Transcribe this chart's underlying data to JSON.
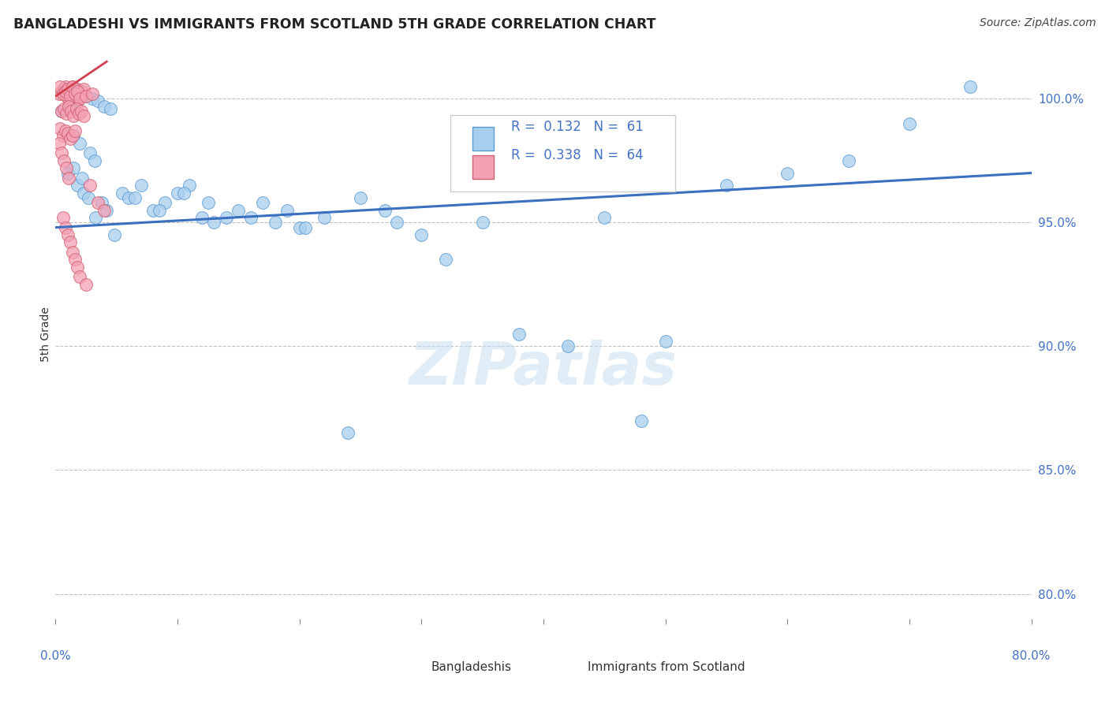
{
  "title": "BANGLADESHI VS IMMIGRANTS FROM SCOTLAND 5TH GRADE CORRELATION CHART",
  "source": "Source: ZipAtlas.com",
  "ylabel": "5th Grade",
  "ylabel_right_ticks": [
    80.0,
    85.0,
    90.0,
    95.0,
    100.0
  ],
  "xmin": 0.0,
  "xmax": 80.0,
  "ymin": 79.0,
  "ymax": 102.0,
  "legend_blue_r": "R =  0.132",
  "legend_blue_n": "N =  61",
  "legend_pink_r": "R =  0.338",
  "legend_pink_n": "N =  64",
  "blue_color": "#A8CEED",
  "blue_edge_color": "#5B9BD5",
  "pink_color": "#F4A0B5",
  "pink_edge_color": "#D06070",
  "trend_blue_color": "#3B6FBF",
  "trend_pink_color": "#D04050",
  "watermark": "ZIPatlas",
  "blue_scatter_x": [
    0.5,
    1.2,
    1.8,
    2.5,
    3.0,
    3.5,
    4.0,
    4.5,
    1.5,
    2.0,
    2.8,
    3.2,
    1.0,
    1.8,
    2.3,
    2.7,
    3.8,
    4.2,
    5.5,
    6.0,
    7.0,
    8.0,
    9.0,
    10.0,
    11.0,
    12.0,
    13.0,
    14.0,
    15.0,
    17.0,
    18.0,
    19.0,
    20.0,
    22.0,
    25.0,
    27.0,
    28.0,
    30.0,
    35.0,
    38.0,
    42.0,
    45.0,
    50.0,
    55.0,
    60.0,
    65.0,
    70.0,
    75.0,
    1.5,
    2.2,
    3.3,
    4.8,
    6.5,
    8.5,
    10.5,
    12.5,
    16.0,
    20.5,
    24.0,
    32.0,
    48.0
  ],
  "blue_scatter_y": [
    99.5,
    99.8,
    100.0,
    100.1,
    100.0,
    99.9,
    99.7,
    99.6,
    98.5,
    98.2,
    97.8,
    97.5,
    97.0,
    96.5,
    96.2,
    96.0,
    95.8,
    95.5,
    96.2,
    96.0,
    96.5,
    95.5,
    95.8,
    96.2,
    96.5,
    95.2,
    95.0,
    95.2,
    95.5,
    95.8,
    95.0,
    95.5,
    94.8,
    95.2,
    96.0,
    95.5,
    95.0,
    94.5,
    95.0,
    90.5,
    90.0,
    95.2,
    90.2,
    96.5,
    97.0,
    97.5,
    99.0,
    100.5,
    97.2,
    96.8,
    95.2,
    94.5,
    96.0,
    95.5,
    96.2,
    95.8,
    95.2,
    94.8,
    86.5,
    93.5,
    87.0
  ],
  "pink_scatter_x": [
    0.3,
    0.5,
    0.7,
    0.8,
    0.9,
    1.0,
    1.1,
    1.2,
    1.3,
    1.4,
    1.5,
    1.6,
    1.7,
    1.8,
    1.9,
    2.0,
    2.1,
    2.2,
    2.3,
    0.4,
    0.6,
    0.8,
    1.0,
    1.2,
    1.4,
    1.6,
    1.8,
    2.0,
    2.5,
    3.0,
    0.5,
    0.7,
    0.9,
    1.1,
    1.3,
    1.5,
    1.7,
    1.9,
    2.1,
    2.3,
    0.4,
    0.6,
    0.8,
    1.0,
    1.2,
    1.4,
    1.6,
    0.3,
    0.5,
    0.7,
    0.9,
    1.1,
    2.8,
    3.5,
    4.0,
    0.6,
    0.8,
    1.0,
    1.2,
    1.4,
    1.6,
    1.8,
    2.0,
    2.5
  ],
  "pink_scatter_y": [
    100.2,
    100.3,
    100.4,
    100.5,
    100.1,
    100.2,
    100.0,
    100.3,
    100.4,
    100.5,
    100.1,
    100.2,
    100.3,
    100.4,
    100.0,
    100.2,
    100.1,
    100.3,
    100.4,
    100.5,
    100.2,
    100.3,
    100.4,
    100.1,
    100.5,
    100.2,
    100.3,
    100.0,
    100.1,
    100.2,
    99.5,
    99.6,
    99.4,
    99.7,
    99.5,
    99.3,
    99.6,
    99.4,
    99.5,
    99.3,
    98.8,
    98.5,
    98.7,
    98.6,
    98.4,
    98.5,
    98.7,
    98.2,
    97.8,
    97.5,
    97.2,
    96.8,
    96.5,
    95.8,
    95.5,
    95.2,
    94.8,
    94.5,
    94.2,
    93.8,
    93.5,
    93.2,
    92.8,
    92.5
  ],
  "blue_trend_x": [
    0.0,
    80.0
  ],
  "blue_trend_y": [
    94.8,
    97.0
  ],
  "pink_trend_x": [
    0.0,
    4.2
  ],
  "pink_trend_y": [
    100.1,
    101.5
  ]
}
